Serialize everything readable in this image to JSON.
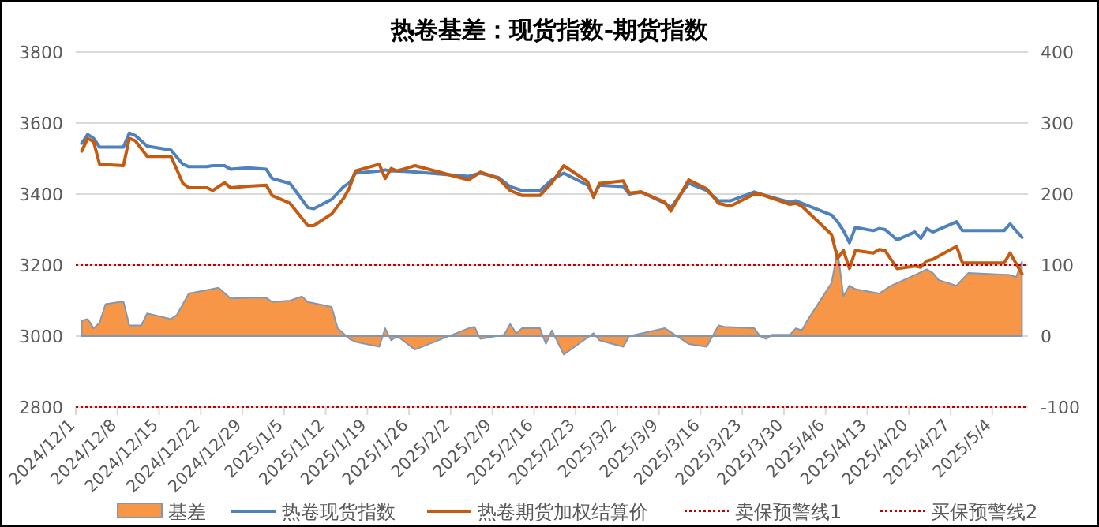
{
  "chart_data": {
    "type": "line",
    "title": "热卷基差：现货指数-期货指数",
    "xlim": [
      "2024-12-01",
      "2025-05-10"
    ],
    "xticks": [
      {
        "value": "2024-12-01",
        "label": "2024/12/1"
      },
      {
        "value": "2024-12-08",
        "label": "2024/12/8"
      },
      {
        "value": "2024-12-15",
        "label": "2024/12/15"
      },
      {
        "value": "2024-12-22",
        "label": "2024/12/22"
      },
      {
        "value": "2024-12-29",
        "label": "2024/12/29"
      },
      {
        "value": "2025-01-05",
        "label": "2025/1/5"
      },
      {
        "value": "2025-01-12",
        "label": "2025/1/12"
      },
      {
        "value": "2025-01-19",
        "label": "2025/1/19"
      },
      {
        "value": "2025-01-26",
        "label": "2025/1/26"
      },
      {
        "value": "2025-02-02",
        "label": "2025/2/2"
      },
      {
        "value": "2025-02-09",
        "label": "2025/2/9"
      },
      {
        "value": "2025-02-16",
        "label": "2025/2/16"
      },
      {
        "value": "2025-02-23",
        "label": "2025/2/23"
      },
      {
        "value": "2025-03-02",
        "label": "2025/3/2"
      },
      {
        "value": "2025-03-09",
        "label": "2025/3/9"
      },
      {
        "value": "2025-03-16",
        "label": "2025/3/16"
      },
      {
        "value": "2025-03-23",
        "label": "2025/3/23"
      },
      {
        "value": "2025-03-30",
        "label": "2025/3/30"
      },
      {
        "value": "2025-04-06",
        "label": "2025/4/6"
      },
      {
        "value": "2025-04-13",
        "label": "2025/4/13"
      },
      {
        "value": "2025-04-20",
        "label": "2025/4/20"
      },
      {
        "value": "2025-04-27",
        "label": "2025/4/27"
      },
      {
        "value": "2025-05-04",
        "label": "2025/5/4"
      }
    ],
    "ylim": [
      2800,
      3800
    ],
    "yticks": [
      2800,
      3000,
      3200,
      3400,
      3600,
      3800
    ],
    "y2lim": [
      -100,
      400
    ],
    "y2ticks": [
      -100,
      0,
      100,
      200,
      300,
      400
    ],
    "grid": "y",
    "legend": "bottom",
    "series": [
      {
        "name": "基差",
        "type": "area",
        "axis": "y2",
        "color": "#f79646",
        "x": [
          "2024-12-02",
          "2024-12-03",
          "2024-12-04",
          "2024-12-05",
          "2024-12-06",
          "2024-12-09",
          "2024-12-10",
          "2024-12-12",
          "2024-12-13",
          "2024-12-17",
          "2024-12-18",
          "2024-12-19",
          "2024-12-20",
          "2024-12-25",
          "2024-12-27",
          "2024-12-30",
          "2025-01-02",
          "2025-01-03",
          "2025-01-06",
          "2025-01-08",
          "2025-01-09",
          "2025-01-13",
          "2025-01-14",
          "2025-01-16",
          "2025-01-17",
          "2025-01-21",
          "2025-01-22",
          "2025-01-23",
          "2025-01-24",
          "2025-01-27",
          "2025-02-05",
          "2025-02-06",
          "2025-02-07",
          "2025-02-11",
          "2025-02-12",
          "2025-02-13",
          "2025-02-14",
          "2025-02-17",
          "2025-02-18",
          "2025-02-19",
          "2025-02-21",
          "2025-02-24",
          "2025-02-26",
          "2025-02-27",
          "2025-03-03",
          "2025-03-04",
          "2025-03-10",
          "2025-03-14",
          "2025-03-17",
          "2025-03-19",
          "2025-03-20",
          "2025-03-25",
          "2025-03-26",
          "2025-03-27",
          "2025-03-28",
          "2025-03-31",
          "2025-04-01",
          "2025-04-02",
          "2025-04-03",
          "2025-04-07",
          "2025-04-08",
          "2025-04-09",
          "2025-04-10",
          "2025-04-11",
          "2025-04-15",
          "2025-04-17",
          "2025-04-21",
          "2025-04-23",
          "2025-04-24",
          "2025-04-25",
          "2025-04-28",
          "2025-04-30",
          "2025-05-07",
          "2025-05-08",
          "2025-05-09"
        ],
        "values": [
          22,
          24,
          11,
          19,
          45,
          49,
          15,
          15,
          32,
          24,
          30,
          45,
          60,
          68,
          53,
          54,
          54,
          48,
          50,
          56,
          48,
          41,
          11,
          -4,
          -8,
          -15,
          11,
          -6,
          0,
          -19,
          11,
          13,
          -4,
          2,
          17,
          4,
          11,
          11,
          -11,
          8,
          -26,
          -8,
          4,
          -6,
          -15,
          0,
          11,
          -11,
          -15,
          15,
          13,
          11,
          0,
          -4,
          2,
          2,
          11,
          8,
          23,
          75,
          120,
          56,
          71,
          66,
          60,
          71,
          86,
          94,
          89,
          79,
          71,
          89,
          86,
          83,
          105
        ]
      },
      {
        "name": "热卷现货指数",
        "type": "line",
        "color": "#4f81bd",
        "x": [
          "2024-12-02",
          "2024-12-03",
          "2024-12-04",
          "2024-12-05",
          "2024-12-09",
          "2024-12-10",
          "2024-12-11",
          "2024-12-13",
          "2024-12-17",
          "2024-12-19",
          "2024-12-20",
          "2024-12-23",
          "2024-12-24",
          "2024-12-26",
          "2024-12-27",
          "2024-12-30",
          "2025-01-02",
          "2025-01-03",
          "2025-01-06",
          "2025-01-09",
          "2025-01-10",
          "2025-01-13",
          "2025-01-15",
          "2025-01-16",
          "2025-01-17",
          "2025-01-21",
          "2025-01-22",
          "2025-01-23",
          "2025-01-24",
          "2025-01-27",
          "2025-02-05",
          "2025-02-07",
          "2025-02-10",
          "2025-02-12",
          "2025-02-14",
          "2025-02-17",
          "2025-02-19",
          "2025-02-21",
          "2025-02-25",
          "2025-02-26",
          "2025-02-27",
          "2025-03-03",
          "2025-03-04",
          "2025-03-06",
          "2025-03-10",
          "2025-03-11",
          "2025-03-14",
          "2025-03-17",
          "2025-03-19",
          "2025-03-21",
          "2025-03-25",
          "2025-03-26",
          "2025-03-31",
          "2025-04-01",
          "2025-04-02",
          "2025-04-07",
          "2025-04-08",
          "2025-04-09",
          "2025-04-10",
          "2025-04-11",
          "2025-04-14",
          "2025-04-15",
          "2025-04-16",
          "2025-04-18",
          "2025-04-21",
          "2025-04-22",
          "2025-04-23",
          "2025-04-24",
          "2025-04-28",
          "2025-04-29",
          "2025-04-30",
          "2025-05-06",
          "2025-05-07",
          "2025-05-09"
        ],
        "values": [
          3543,
          3568,
          3557,
          3532,
          3532,
          3572,
          3565,
          3535,
          3524,
          3484,
          3477,
          3477,
          3480,
          3480,
          3470,
          3474,
          3470,
          3444,
          3430,
          3362,
          3359,
          3385,
          3421,
          3432,
          3459,
          3465,
          3468,
          3465,
          3465,
          3462,
          3450,
          3459,
          3447,
          3421,
          3410,
          3410,
          3440,
          3459,
          3425,
          3396,
          3425,
          3421,
          3400,
          3406,
          3374,
          3362,
          3430,
          3410,
          3381,
          3381,
          3406,
          3400,
          3377,
          3381,
          3374,
          3341,
          3322,
          3297,
          3263,
          3306,
          3297,
          3303,
          3300,
          3271,
          3293,
          3275,
          3303,
          3293,
          3322,
          3297,
          3297,
          3297,
          3316,
          3278
        ]
      },
      {
        "name": "热卷期货加权结算价",
        "type": "line",
        "color": "#c55a11",
        "x": [
          "2024-12-02",
          "2024-12-03",
          "2024-12-04",
          "2024-12-05",
          "2024-12-09",
          "2024-12-10",
          "2024-12-11",
          "2024-12-13",
          "2024-12-17",
          "2024-12-19",
          "2024-12-20",
          "2024-12-23",
          "2024-12-24",
          "2024-12-26",
          "2024-12-27",
          "2024-12-30",
          "2025-01-02",
          "2025-01-03",
          "2025-01-06",
          "2025-01-09",
          "2025-01-10",
          "2025-01-13",
          "2025-01-15",
          "2025-01-16",
          "2025-01-17",
          "2025-01-21",
          "2025-01-22",
          "2025-01-23",
          "2025-01-24",
          "2025-01-27",
          "2025-02-05",
          "2025-02-07",
          "2025-02-10",
          "2025-02-12",
          "2025-02-14",
          "2025-02-17",
          "2025-02-19",
          "2025-02-21",
          "2025-02-25",
          "2025-02-26",
          "2025-02-27",
          "2025-03-03",
          "2025-03-04",
          "2025-03-06",
          "2025-03-10",
          "2025-03-11",
          "2025-03-14",
          "2025-03-17",
          "2025-03-19",
          "2025-03-21",
          "2025-03-25",
          "2025-03-26",
          "2025-03-31",
          "2025-04-01",
          "2025-04-02",
          "2025-04-07",
          "2025-04-08",
          "2025-04-09",
          "2025-04-10",
          "2025-04-11",
          "2025-04-14",
          "2025-04-15",
          "2025-04-16",
          "2025-04-18",
          "2025-04-21",
          "2025-04-22",
          "2025-04-23",
          "2025-04-24",
          "2025-04-28",
          "2025-04-29",
          "2025-04-30",
          "2025-05-06",
          "2025-05-07",
          "2025-05-09"
        ],
        "values": [
          3521,
          3557,
          3547,
          3484,
          3480,
          3557,
          3550,
          3506,
          3506,
          3430,
          3418,
          3418,
          3410,
          3432,
          3418,
          3422,
          3425,
          3396,
          3374,
          3311,
          3311,
          3344,
          3388,
          3418,
          3465,
          3484,
          3444,
          3472,
          3465,
          3480,
          3440,
          3462,
          3444,
          3410,
          3396,
          3396,
          3432,
          3480,
          3435,
          3391,
          3430,
          3437,
          3403,
          3406,
          3377,
          3352,
          3440,
          3415,
          3374,
          3366,
          3400,
          3400,
          3371,
          3374,
          3366,
          3286,
          3219,
          3241,
          3190,
          3241,
          3234,
          3244,
          3241,
          3190,
          3197,
          3194,
          3212,
          3216,
          3253,
          3206,
          3206,
          3206,
          3234,
          3175
        ]
      }
    ],
    "ref_lines": [
      {
        "axis": "y2",
        "value": 100,
        "label": "卖保预警线1",
        "color": "#c00000",
        "line_style": "dotted"
      },
      {
        "axis": "y2",
        "value": -100,
        "label": "买保预警线2",
        "color": "#c00000",
        "line_style": "dotted"
      }
    ]
  }
}
